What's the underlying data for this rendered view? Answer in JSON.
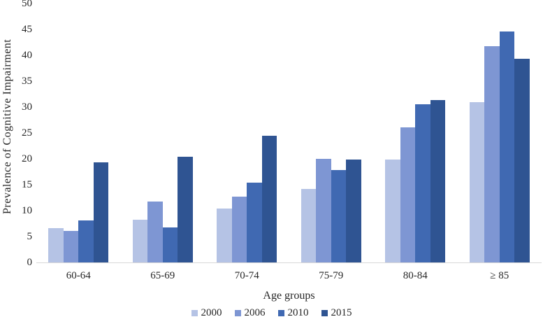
{
  "figure": {
    "background": "#ffffff",
    "text_color": "#262626",
    "axis_line_color": "#d9d9d9"
  },
  "chart_data": {
    "type": "bar",
    "title": "",
    "xlabel": "Age groups",
    "ylabel": "Prevalence of Cognitive Impairment",
    "categories": [
      "60-64",
      "65-69",
      "70-74",
      "75-79",
      "80-84",
      "≥ 85"
    ],
    "series": [
      {
        "name": "2000",
        "color": "#b5c3e5",
        "values": [
          6.6,
          8.3,
          10.4,
          14.2,
          19.8,
          31.0
        ]
      },
      {
        "name": "2006",
        "color": "#7e96d3",
        "values": [
          6.1,
          11.7,
          12.7,
          20.0,
          26.1,
          41.8
        ]
      },
      {
        "name": "2010",
        "color": "#4069b2",
        "values": [
          8.1,
          6.7,
          15.4,
          17.8,
          30.6,
          44.6
        ]
      },
      {
        "name": "2015",
        "color": "#2f5492",
        "values": [
          19.3,
          20.4,
          24.4,
          19.9,
          31.3,
          39.3
        ]
      }
    ],
    "ylim": [
      0,
      50
    ],
    "ytick_step": 5,
    "ytick_labels": [
      "0",
      "5",
      "10",
      "15",
      "20",
      "25",
      "30",
      "35",
      "40",
      "45",
      "50"
    ],
    "grid": false,
    "legend_position": "bottom"
  }
}
